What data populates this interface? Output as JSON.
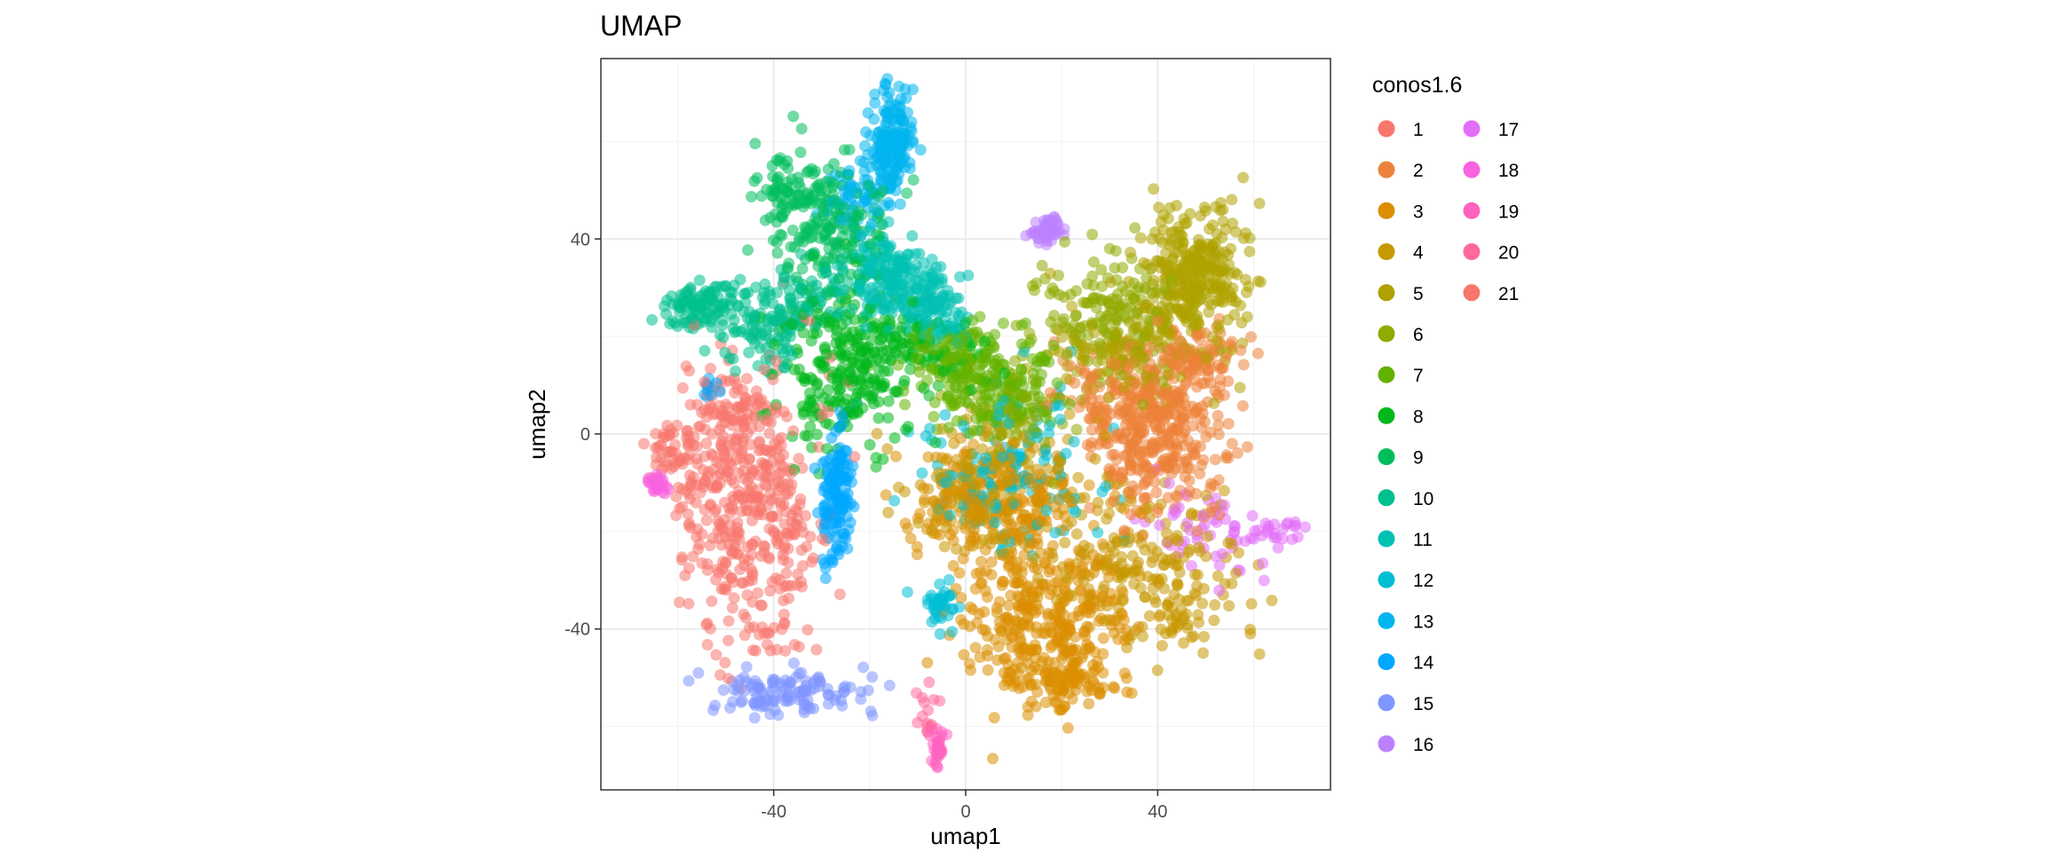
{
  "chart_data": {
    "type": "scatter",
    "title": "UMAP",
    "xlabel": "umap1",
    "ylabel": "umap2",
    "xlim": [
      -76,
      76
    ],
    "ylim": [
      -73,
      77
    ],
    "x_ticks": [
      -40,
      0,
      40
    ],
    "y_ticks": [
      -40,
      0,
      40
    ],
    "x_tick_labels": [
      "-40",
      "0",
      "40"
    ],
    "y_tick_labels": [
      "-40",
      "0",
      "40"
    ],
    "grid": true,
    "legend": {
      "title": "conos1.6",
      "position": "right",
      "columns": 2
    },
    "series": [
      {
        "name": "1",
        "color": "#F8766D",
        "clusters": [
          {
            "cx": -45,
            "cy": -13,
            "sx": 9,
            "sy": 15,
            "n": 420
          },
          {
            "cx": -62,
            "cy": -3,
            "sx": 4,
            "sy": 3,
            "n": 40
          },
          {
            "cx": -48,
            "cy": 6,
            "sx": 6,
            "sy": 4,
            "n": 50
          }
        ]
      },
      {
        "name": "2",
        "color": "#EC8239",
        "clusters": [
          {
            "cx": 40,
            "cy": 0,
            "sx": 8,
            "sy": 10,
            "n": 360
          },
          {
            "cx": 48,
            "cy": 16,
            "sx": 6,
            "sy": 4,
            "n": 90
          },
          {
            "cx": 30,
            "cy": 8,
            "sx": 8,
            "sy": 5,
            "n": 80
          }
        ]
      },
      {
        "name": "3",
        "color": "#DB8E00",
        "clusters": [
          {
            "cx": 17,
            "cy": -38,
            "sx": 10,
            "sy": 9,
            "n": 330
          },
          {
            "cx": 6,
            "cy": -15,
            "sx": 11,
            "sy": 7,
            "n": 240
          },
          {
            "cx": 20,
            "cy": -52,
            "sx": 6,
            "sy": 3,
            "n": 80
          }
        ]
      },
      {
        "name": "4",
        "color": "#C79800",
        "clusters": [
          {
            "cx": 38,
            "cy": -28,
            "sx": 11,
            "sy": 9,
            "n": 200
          },
          {
            "cx": 6,
            "cy": -10,
            "sx": 10,
            "sy": 8,
            "n": 160
          },
          {
            "cx": 45,
            "cy": -40,
            "sx": 3,
            "sy": 3,
            "n": 18
          }
        ]
      },
      {
        "name": "5",
        "color": "#AEA200",
        "clusters": [
          {
            "cx": 47,
            "cy": 32,
            "sx": 7,
            "sy": 9,
            "n": 320
          },
          {
            "cx": 35,
            "cy": 18,
            "sx": 9,
            "sy": 6,
            "n": 120
          }
        ]
      },
      {
        "name": "6",
        "color": "#8FAA00",
        "clusters": [
          {
            "cx": 30,
            "cy": 24,
            "sx": 9,
            "sy": 7,
            "n": 160
          },
          {
            "cx": 10,
            "cy": 5,
            "sx": 8,
            "sy": 6,
            "n": 70
          }
        ]
      },
      {
        "name": "7",
        "color": "#64B200",
        "clusters": [
          {
            "cx": 5,
            "cy": 10,
            "sx": 8,
            "sy": 6,
            "n": 200
          },
          {
            "cx": -3,
            "cy": 16,
            "sx": 6,
            "sy": 4,
            "n": 60
          }
        ]
      },
      {
        "name": "8",
        "color": "#00B81B",
        "clusters": [
          {
            "cx": -25,
            "cy": 14,
            "sx": 8,
            "sy": 10,
            "n": 260
          },
          {
            "cx": -10,
            "cy": 18,
            "sx": 8,
            "sy": 4,
            "n": 80
          }
        ]
      },
      {
        "name": "9",
        "color": "#00BD5C",
        "clusters": [
          {
            "cx": -30,
            "cy": 44,
            "sx": 7,
            "sy": 9,
            "n": 190
          },
          {
            "cx": -38,
            "cy": 50,
            "sx": 3,
            "sy": 4,
            "n": 40
          }
        ]
      },
      {
        "name": "10",
        "color": "#00C08E",
        "clusters": [
          {
            "cx": -55,
            "cy": 26,
            "sx": 5,
            "sy": 3,
            "n": 110
          },
          {
            "cx": -42,
            "cy": 22,
            "sx": 5,
            "sy": 5,
            "n": 90
          },
          {
            "cx": -32,
            "cy": 28,
            "sx": 6,
            "sy": 4,
            "n": 70
          }
        ]
      },
      {
        "name": "11",
        "color": "#00C1B2",
        "clusters": [
          {
            "cx": -12,
            "cy": 30,
            "sx": 6,
            "sy": 5,
            "n": 170
          },
          {
            "cx": -20,
            "cy": 36,
            "sx": 5,
            "sy": 4,
            "n": 60
          },
          {
            "cx": -5,
            "cy": 24,
            "sx": 4,
            "sy": 3,
            "n": 50
          }
        ]
      },
      {
        "name": "12",
        "color": "#00BDD4",
        "clusters": [
          {
            "cx": 10,
            "cy": -8,
            "sx": 12,
            "sy": 10,
            "n": 150
          },
          {
            "cx": -5,
            "cy": -35,
            "sx": 2,
            "sy": 3,
            "n": 40
          }
        ]
      },
      {
        "name": "13",
        "color": "#00B5EE",
        "clusters": [
          {
            "cx": -16,
            "cy": 60,
            "sx": 3,
            "sy": 6,
            "n": 170
          },
          {
            "cx": -24,
            "cy": 50,
            "sx": 4,
            "sy": 4,
            "n": 50
          }
        ]
      },
      {
        "name": "14",
        "color": "#00A7FF",
        "clusters": [
          {
            "cx": -27,
            "cy": -12,
            "sx": 2,
            "sy": 8,
            "n": 150
          },
          {
            "cx": -53,
            "cy": 9,
            "sx": 1,
            "sy": 1,
            "n": 10
          }
        ]
      },
      {
        "name": "15",
        "color": "#7F96FF",
        "clusters": [
          {
            "cx": -38,
            "cy": -53,
            "sx": 9,
            "sy": 3,
            "n": 120
          }
        ]
      },
      {
        "name": "16",
        "color": "#BC81FF",
        "clusters": [
          {
            "cx": 17,
            "cy": 42,
            "sx": 2,
            "sy": 1.5,
            "n": 60
          }
        ]
      },
      {
        "name": "17",
        "color": "#E26EF7",
        "clusters": [
          {
            "cx": 50,
            "cy": -20,
            "sx": 7,
            "sy": 6,
            "n": 50
          },
          {
            "cx": 65,
            "cy": -20,
            "sx": 4,
            "sy": 1.5,
            "n": 25
          }
        ]
      },
      {
        "name": "18",
        "color": "#F863DF",
        "clusters": [
          {
            "cx": -64,
            "cy": -10,
            "sx": 2,
            "sy": 1.5,
            "n": 25
          }
        ]
      },
      {
        "name": "19",
        "color": "#FF62BF",
        "clusters": [
          {
            "cx": -6,
            "cy": -65,
            "sx": 1,
            "sy": 3,
            "n": 30
          }
        ]
      },
      {
        "name": "20",
        "color": "#FF6A9A",
        "clusters": [
          {
            "cx": -8,
            "cy": -58,
            "sx": 1.5,
            "sy": 3,
            "n": 15
          }
        ]
      },
      {
        "name": "21",
        "color": "#F8766D",
        "clusters": [
          {
            "cx": -44,
            "cy": -42,
            "sx": 6,
            "sy": 3,
            "n": 20
          }
        ]
      }
    ]
  }
}
